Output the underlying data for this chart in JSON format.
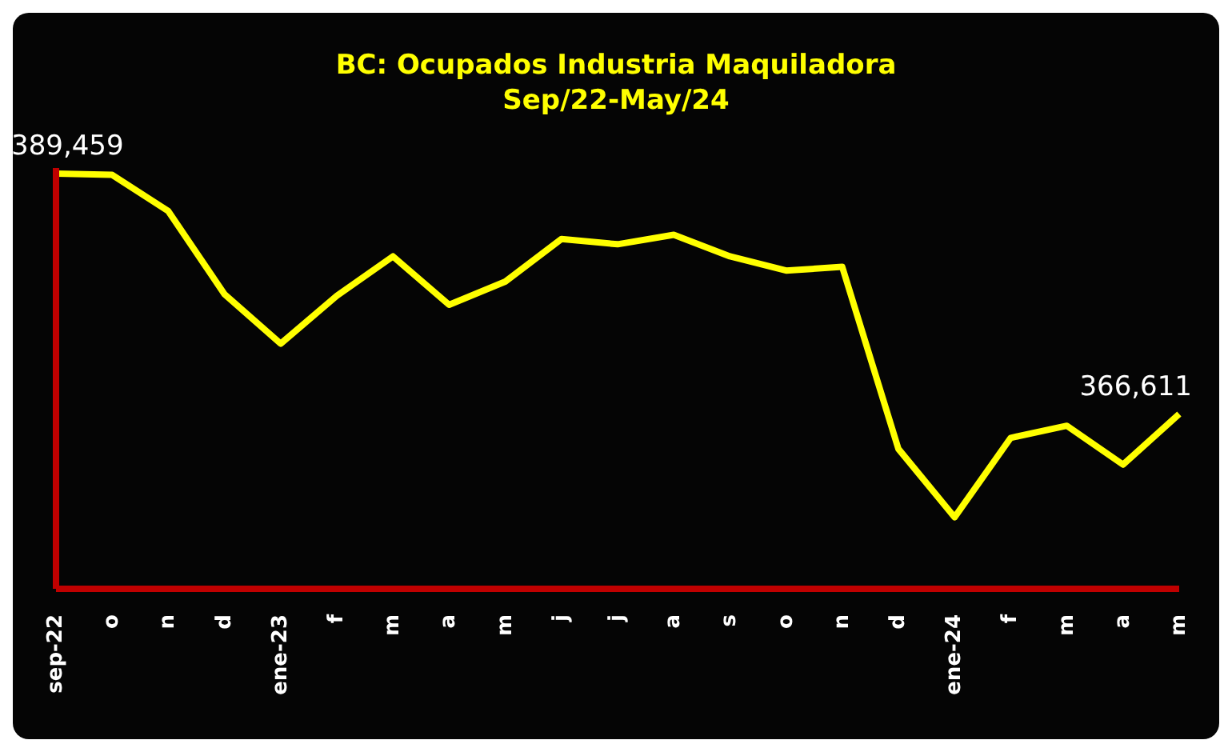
{
  "chart_data": {
    "type": "line",
    "title": "BC: Ocupados Industria Maquiladora",
    "subtitle": "Sep/22-May/24",
    "categories": [
      "sep-22",
      "o",
      "n",
      "d",
      "ene-23",
      "f",
      "m",
      "a",
      "m",
      "j",
      "j",
      "a",
      "s",
      "o",
      "n",
      "d",
      "ene-24",
      "f",
      "m",
      "a",
      "m"
    ],
    "series": [
      {
        "color": "#ffff00",
        "values": [
          389459,
          389350,
          385900,
          378000,
          373300,
          377850,
          381600,
          377000,
          379200,
          383250,
          382750,
          383650,
          381600,
          380250,
          380600,
          363300,
          356800,
          364350,
          365500,
          361800,
          366611
        ],
        "value_labels": [
          "389,459",
          null,
          null,
          null,
          null,
          null,
          null,
          null,
          null,
          null,
          null,
          null,
          null,
          null,
          null,
          null,
          null,
          null,
          null,
          null,
          "366,611"
        ]
      }
    ],
    "ylim": [
      350000,
      390000
    ],
    "tick_labels": "x",
    "grid": false,
    "legend": false
  }
}
